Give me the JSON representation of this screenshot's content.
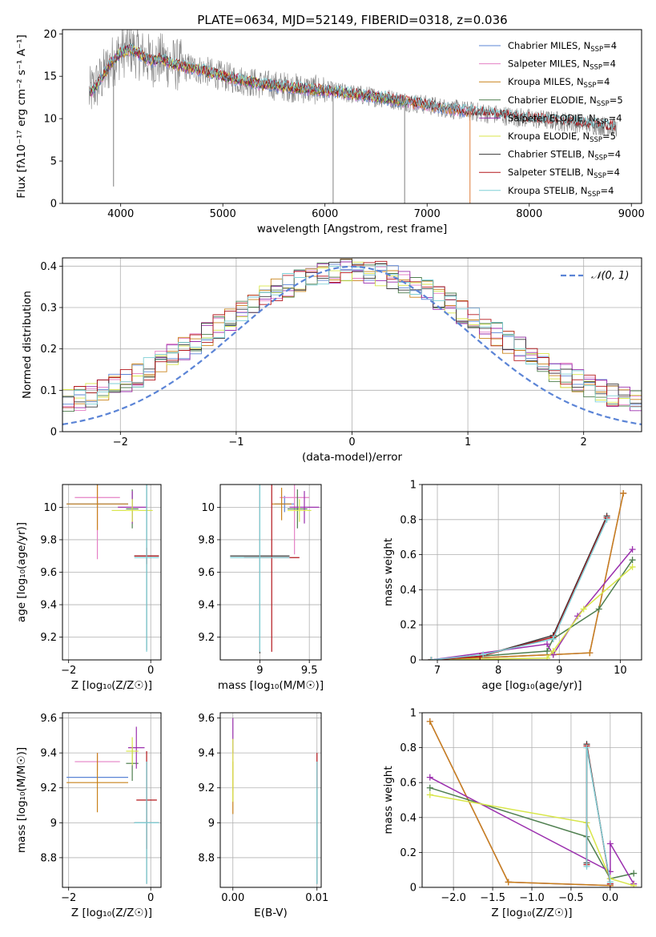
{
  "figure": {
    "title": "PLATE=0634, MJD=52149, FIBERID=0318, z=0.036"
  },
  "colors": {
    "Chabrier MILES": "#5b84d6",
    "Salpeter MILES": "#e581c5",
    "Kroupa MILES": "#c9821a",
    "Chabrier ELODIE": "#4f7f4f",
    "Salpeter ELODIE": "#9b2fae",
    "Kroupa ELODIE": "#d8e64a",
    "Chabrier STELIB": "#3a3a3a",
    "Salpeter STELIB": "#b3161b",
    "Kroupa STELIB": "#7fcfd6",
    "observed": "#808080",
    "orange_model": "#e07b3a",
    "normal_curve": "#5b84d6"
  },
  "chart_data": [
    {
      "id": "spectrum",
      "type": "line",
      "title": "PLATE=0634, MJD=52149, FIBERID=0318, z=0.036",
      "xlabel": "wavelength [Angstrom, rest frame]",
      "ylabel": "Flux [fλ10⁻¹⁷ erg cm⁻² s⁻¹ A⁻¹]",
      "xlim": [
        3430,
        9100
      ],
      "ylim": [
        0,
        20.5
      ],
      "xticks": [
        4000,
        5000,
        6000,
        7000,
        8000,
        9000
      ],
      "yticks": [
        0,
        5,
        10,
        15,
        20
      ],
      "grid": false,
      "legend_position": "top-right",
      "legend": [
        {
          "label": "Chabrier MILES, N",
          "sub": "SSP",
          "suffix": "=4",
          "model": "Chabrier MILES"
        },
        {
          "label": "Salpeter MILES, N",
          "sub": "SSP",
          "suffix": "=4",
          "model": "Salpeter MILES"
        },
        {
          "label": "Kroupa MILES, N",
          "sub": "SSP",
          "suffix": "=4",
          "model": "Kroupa MILES"
        },
        {
          "label": "Chabrier ELODIE, N",
          "sub": "SSP",
          "suffix": "=5",
          "model": "Chabrier ELODIE"
        },
        {
          "label": "Salpeter ELODIE, N",
          "sub": "SSP",
          "suffix": "=4",
          "model": "Salpeter ELODIE"
        },
        {
          "label": "Kroupa ELODIE, N",
          "sub": "SSP",
          "suffix": "=5",
          "model": "Kroupa ELODIE"
        },
        {
          "label": "Chabrier STELIB, N",
          "sub": "SSP",
          "suffix": "=4",
          "model": "Chabrier STELIB"
        },
        {
          "label": "Salpeter STELIB, N",
          "sub": "SSP",
          "suffix": "=4",
          "model": "Salpeter STELIB"
        },
        {
          "label": "Kroupa STELIB, N",
          "sub": "SSP",
          "suffix": "=4",
          "model": "Kroupa STELIB"
        }
      ],
      "model_continuum": {
        "x": [
          3700,
          3800,
          3900,
          4000,
          4100,
          4200,
          4300,
          4400,
          4500,
          4600,
          4800,
          5000,
          5200,
          5400,
          5600,
          5800,
          6000,
          6200,
          6400,
          6600,
          6800,
          7000,
          7200,
          7400,
          7600,
          7800,
          8000,
          8200,
          8400,
          8600,
          8850
        ],
        "y": [
          13.0,
          14.5,
          16.5,
          17.8,
          18.2,
          17.5,
          16.8,
          17.0,
          16.5,
          16.2,
          15.7,
          15.0,
          14.5,
          14.0,
          13.8,
          13.5,
          13.3,
          13.0,
          12.7,
          12.4,
          12.0,
          11.6,
          11.2,
          10.9,
          10.6,
          10.3,
          10.0,
          9.8,
          9.6,
          9.3,
          9.0
        ]
      },
      "model_end_x": {
        "MILES": 7400,
        "ELODIE": 6800,
        "STELIB": 8850
      },
      "observed_range": [
        3690,
        8860
      ],
      "absorption_dips": [
        {
          "x": 3930,
          "y": 2.0
        },
        {
          "x": 6080,
          "y": 0.0
        },
        {
          "x": 6780,
          "y": 0.0
        },
        {
          "x": 7420,
          "y": 0.0
        }
      ]
    },
    {
      "id": "residuals",
      "type": "line",
      "xlabel": "(data-model)/error",
      "ylabel": "Normed distribution",
      "xlim": [
        -2.5,
        2.5
      ],
      "ylim": [
        0,
        0.42
      ],
      "xticks": [
        -2,
        -1,
        0,
        1,
        2
      ],
      "yticks": [
        0.0,
        0.1,
        0.2,
        0.3,
        0.4
      ],
      "grid": true,
      "legend_position": "top-right",
      "legend_label": "𝒩(0, 1)",
      "normal_curve": {
        "mean": 0,
        "sigma": 1
      },
      "bin_width": 0.1
    },
    {
      "id": "age_vs_Z",
      "type": "scatter",
      "xlabel": "Z [log₁₀(Z/Z☉)]",
      "ylabel": "age  [log₁₀(age/yr)]",
      "xlim": [
        -2.15,
        0.25
      ],
      "ylim": [
        9.06,
        10.14
      ],
      "xticks": [
        -2,
        0
      ],
      "yticks": [
        9.2,
        9.4,
        9.6,
        9.8,
        10.0
      ],
      "grid": true,
      "errorbars": [
        {
          "model": "Chabrier MILES",
          "x": -1.3,
          "xerr": 0.75,
          "y": 10.02,
          "yerr": 0.02
        },
        {
          "model": "Salpeter MILES",
          "x": -1.3,
          "xerr": 0.55,
          "y": 10.06,
          "yerr": 0.38
        },
        {
          "model": "Kroupa MILES",
          "x": -1.3,
          "xerr": 0.75,
          "y": 10.02,
          "yerr": 0.16
        },
        {
          "model": "Chabrier ELODIE",
          "x": -0.45,
          "xerr": 0.15,
          "y": 9.99,
          "yerr": 0.12
        },
        {
          "model": "Salpeter ELODIE",
          "x": -0.45,
          "xerr": 0.35,
          "y": 10.0,
          "yerr": 0.1
        },
        {
          "model": "Kroupa ELODIE",
          "x": -0.45,
          "xerr": 0.5,
          "y": 9.98,
          "yerr": 0.07
        },
        {
          "model": "Chabrier STELIB",
          "x": -0.1,
          "xerr": 0.3,
          "y": 9.7,
          "yerr": 0.58
        },
        {
          "model": "Salpeter STELIB",
          "x": -0.1,
          "xerr": 0.3,
          "y": 9.7,
          "yerr": 0.05
        },
        {
          "model": "Kroupa STELIB",
          "x": -0.1,
          "xerr": 0.3,
          "y": 9.69,
          "yerr": 0.58
        }
      ]
    },
    {
      "id": "age_vs_mass",
      "type": "scatter",
      "xlabel": "mass [log₁₀(M/M☉)]",
      "ylabel": "",
      "xlim": [
        8.6,
        9.62
      ],
      "ylim": [
        9.06,
        10.14
      ],
      "xticks": [
        9.0,
        9.5
      ],
      "yticks": [
        9.2,
        9.4,
        9.6,
        9.8,
        10.0
      ],
      "grid": true,
      "errorbars": [
        {
          "model": "Chabrier MILES",
          "x": 9.25,
          "xerr": 0.1,
          "y": 10.02,
          "yerr": 0.05
        },
        {
          "model": "Salpeter MILES",
          "x": 9.35,
          "xerr": 0.15,
          "y": 10.06,
          "yerr": 0.35
        },
        {
          "model": "Kroupa MILES",
          "x": 9.22,
          "xerr": 0.1,
          "y": 10.02,
          "yerr": 0.1
        },
        {
          "model": "Chabrier ELODIE",
          "x": 9.38,
          "xerr": 0.1,
          "y": 9.99,
          "yerr": 0.12
        },
        {
          "model": "Salpeter ELODIE",
          "x": 9.45,
          "xerr": 0.15,
          "y": 10.0,
          "yerr": 0.1
        },
        {
          "model": "Kroupa ELODIE",
          "x": 9.4,
          "xerr": 0.12,
          "y": 9.98,
          "yerr": 0.07
        },
        {
          "model": "Chabrier STELIB",
          "x": 9.0,
          "xerr": 0.3,
          "y": 9.7,
          "yerr": 0.6
        },
        {
          "model": "Salpeter STELIB",
          "x": 9.12,
          "xerr": 0.28,
          "y": 9.69,
          "yerr": 0.58
        },
        {
          "model": "Kroupa STELIB",
          "x": 9.0,
          "xerr": 0.3,
          "y": 9.69,
          "yerr": 0.58
        }
      ]
    },
    {
      "id": "weight_vs_age",
      "type": "line",
      "xlabel": "age  [log₁₀(age/yr)]",
      "ylabel": "mass weight",
      "xlim": [
        6.75,
        10.35
      ],
      "ylim": [
        0,
        1.0
      ],
      "xticks": [
        7,
        8,
        9,
        10
      ],
      "yticks": [
        0.0,
        0.2,
        0.4,
        0.6,
        0.8,
        1.0
      ],
      "grid": true,
      "series": [
        {
          "model": "Chabrier MILES",
          "x": [
            6.9,
            8.9,
            9.5,
            10.05
          ],
          "y": [
            0.0,
            0.03,
            0.04,
            0.95
          ]
        },
        {
          "model": "Salpeter MILES",
          "x": [
            6.9,
            8.9,
            9.5,
            10.05
          ],
          "y": [
            0.0,
            0.03,
            0.04,
            0.95
          ]
        },
        {
          "model": "Kroupa MILES",
          "x": [
            6.9,
            8.9,
            9.5,
            10.05
          ],
          "y": [
            0.0,
            0.03,
            0.04,
            0.95
          ]
        },
        {
          "model": "Chabrier ELODIE",
          "x": [
            6.9,
            8.8,
            8.9,
            9.65,
            10.2
          ],
          "y": [
            0.0,
            0.05,
            0.12,
            0.29,
            0.57
          ]
        },
        {
          "model": "Salpeter ELODIE",
          "x": [
            6.9,
            8.8,
            8.9,
            9.3,
            10.2
          ],
          "y": [
            0.0,
            0.09,
            0.03,
            0.25,
            0.63
          ]
        },
        {
          "model": "Kroupa ELODIE",
          "x": [
            6.9,
            8.8,
            8.9,
            9.4,
            10.2
          ],
          "y": [
            0.0,
            0.01,
            0.05,
            0.29,
            0.53
          ]
        },
        {
          "model": "Chabrier STELIB",
          "x": [
            6.9,
            7.7,
            8.9,
            9.78
          ],
          "y": [
            0.0,
            0.02,
            0.14,
            0.82
          ]
        },
        {
          "model": "Salpeter STELIB",
          "x": [
            6.9,
            7.7,
            8.9,
            9.78
          ],
          "y": [
            0.0,
            0.02,
            0.13,
            0.81
          ]
        },
        {
          "model": "Kroupa STELIB",
          "x": [
            6.9,
            7.75,
            8.9,
            9.78
          ],
          "y": [
            0.0,
            0.03,
            0.12,
            0.8
          ]
        }
      ]
    },
    {
      "id": "mass_vs_Z",
      "type": "scatter",
      "xlabel": "Z [log₁₀(Z/Z☉)]",
      "ylabel": "mass [log₁₀(M/M☉)]",
      "xlim": [
        -2.15,
        0.25
      ],
      "ylim": [
        8.63,
        9.63
      ],
      "xticks": [
        -2,
        0
      ],
      "yticks": [
        8.8,
        9.0,
        9.2,
        9.4,
        9.6
      ],
      "grid": true,
      "errorbars": [
        {
          "model": "Chabrier MILES",
          "x": -1.3,
          "xerr": 0.75,
          "y": 9.26,
          "yerr": 0.0
        },
        {
          "model": "Salpeter MILES",
          "x": -1.3,
          "xerr": 0.55,
          "y": 9.35,
          "yerr": 0.05
        },
        {
          "model": "Kroupa MILES",
          "x": -1.3,
          "xerr": 0.75,
          "y": 9.23,
          "yerr": 0.17
        },
        {
          "model": "Chabrier ELODIE",
          "x": -0.45,
          "xerr": 0.15,
          "y": 9.34,
          "yerr": 0.1
        },
        {
          "model": "Salpeter ELODIE",
          "x": -0.35,
          "xerr": 0.2,
          "y": 9.43,
          "yerr": 0.12
        },
        {
          "model": "Kroupa ELODIE",
          "x": -0.45,
          "xerr": 0.15,
          "y": 9.41,
          "yerr": 0.08
        },
        {
          "model": "Chabrier STELIB",
          "x": -0.1,
          "xerr": 0.3,
          "y": 9.0,
          "yerr": 0.35
        },
        {
          "model": "Salpeter STELIB",
          "x": -0.1,
          "xerr": 0.25,
          "y": 9.13,
          "yerr": 0.28
        },
        {
          "model": "Kroupa STELIB",
          "x": -0.1,
          "xerr": 0.3,
          "y": 9.0,
          "yerr": 0.35
        }
      ]
    },
    {
      "id": "mass_vs_EBV",
      "type": "scatter",
      "xlabel": "E(B-V)",
      "ylabel": "",
      "xlim": [
        -0.0015,
        0.0105
      ],
      "ylim": [
        8.63,
        9.63
      ],
      "xticks": [
        0.0,
        0.01
      ],
      "xtick_labels": [
        "0.00",
        "0.01"
      ],
      "yticks": [
        8.8,
        9.0,
        9.2,
        9.4,
        9.6
      ],
      "grid": true,
      "errorbars": [
        {
          "model": "Salpeter MILES",
          "x": 0.0,
          "xerr": 0.0,
          "y": 9.3,
          "yerr": 0.12
        },
        {
          "model": "Kroupa MILES",
          "x": 0.0,
          "xerr": 0.0,
          "y": 9.2,
          "yerr": 0.15
        },
        {
          "model": "Salpeter ELODIE",
          "x": 0.0,
          "xerr": 0.0,
          "y": 9.5,
          "yerr": 0.1
        },
        {
          "model": "Kroupa ELODIE",
          "x": 0.0,
          "xerr": 0.0,
          "y": 9.3,
          "yerr": 0.18
        },
        {
          "model": "Chabrier STELIB",
          "x": 0.01,
          "xerr": 0.0,
          "y": 9.0,
          "yerr": 0.35
        },
        {
          "model": "Salpeter STELIB",
          "x": 0.01,
          "xerr": 0.0,
          "y": 9.3,
          "yerr": 0.1
        },
        {
          "model": "Kroupa STELIB",
          "x": 0.01,
          "xerr": 0.0,
          "y": 9.0,
          "yerr": 0.35
        }
      ]
    },
    {
      "id": "weight_vs_Z",
      "type": "line",
      "xlabel": "Z [log₁₀(Z/Z☉)]",
      "ylabel": "mass weight",
      "xlim": [
        -2.4,
        0.4
      ],
      "ylim": [
        0,
        1.0
      ],
      "xticks": [
        -2.0,
        -1.5,
        -1.0,
        -0.5,
        0.0
      ],
      "xtick_labels": [
        "−2.0",
        "−1.5",
        "−1.0",
        "−0.5",
        "0.0"
      ],
      "yticks": [
        0.0,
        0.2,
        0.4,
        0.6,
        0.8,
        1.0
      ],
      "grid": true,
      "series": [
        {
          "model": "Chabrier MILES",
          "x": [
            -2.3,
            -1.3,
            0.0
          ],
          "y": [
            0.95,
            0.03,
            0.01
          ]
        },
        {
          "model": "Salpeter MILES",
          "x": [
            -2.3,
            -1.3,
            0.0
          ],
          "y": [
            0.95,
            0.03,
            0.01
          ]
        },
        {
          "model": "Kroupa MILES",
          "x": [
            -2.3,
            -1.3,
            0.0
          ],
          "y": [
            0.95,
            0.03,
            0.01
          ]
        },
        {
          "model": "Chabrier ELODIE",
          "x": [
            -2.3,
            -0.3,
            0.0,
            0.3
          ],
          "y": [
            0.57,
            0.29,
            0.05,
            0.08
          ]
        },
        {
          "model": "Salpeter ELODIE",
          "x": [
            -2.3,
            0.0,
            0.0,
            0.3
          ],
          "y": [
            0.63,
            0.09,
            0.25,
            0.02
          ]
        },
        {
          "model": "Kroupa ELODIE",
          "x": [
            -2.3,
            -0.3,
            0.0,
            0.3
          ],
          "y": [
            0.53,
            0.37,
            0.05,
            0.01
          ]
        },
        {
          "model": "Chabrier STELIB",
          "x": [
            -0.3,
            -0.3,
            0.0
          ],
          "y": [
            0.14,
            0.82,
            0.02
          ]
        },
        {
          "model": "Salpeter STELIB",
          "x": [
            -0.3,
            -0.3,
            0.0
          ],
          "y": [
            0.13,
            0.81,
            0.02
          ]
        },
        {
          "model": "Kroupa STELIB",
          "x": [
            -0.3,
            -0.3,
            0.0
          ],
          "y": [
            0.12,
            0.8,
            0.03
          ]
        }
      ]
    }
  ]
}
